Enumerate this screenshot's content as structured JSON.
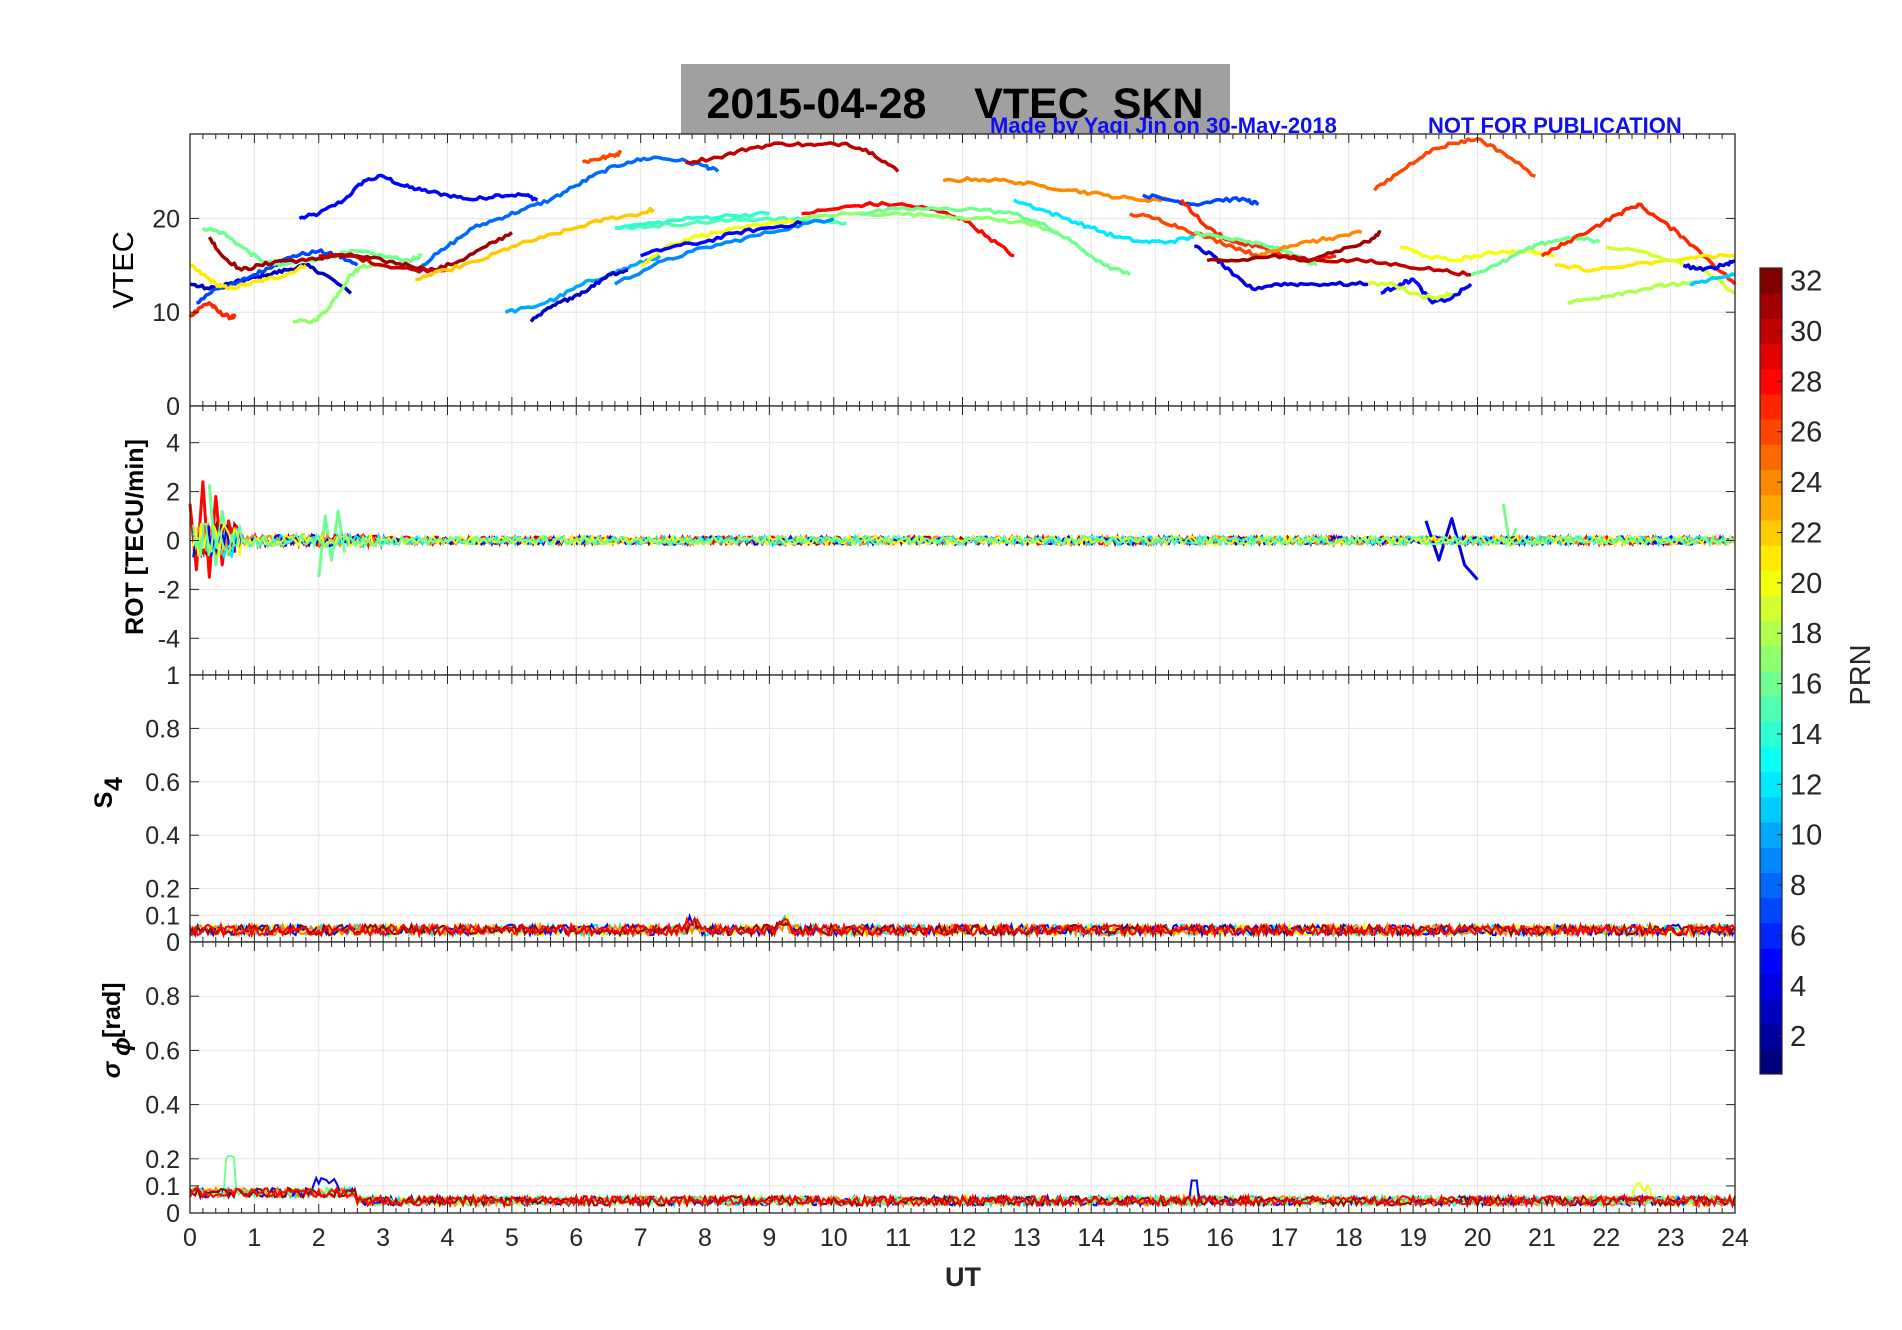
{
  "title": {
    "main": "2015-04-28    VTEC  SKN",
    "credit": "Made by Yaqi Jin on 30-May-2018",
    "notice": "NOT FOR PUBLICATION",
    "box_color": "#a0a0a0",
    "credit_color": "#1010ee"
  },
  "x_axis": {
    "label": "UT",
    "range": [
      0,
      24
    ],
    "ticks": [
      "0",
      "1",
      "2",
      "3",
      "4",
      "5",
      "6",
      "7",
      "8",
      "9",
      "10",
      "11",
      "12",
      "13",
      "14",
      "15",
      "16",
      "17",
      "18",
      "19",
      "20",
      "21",
      "22",
      "23",
      "24"
    ]
  },
  "colorbar": {
    "label": "PRN",
    "range": [
      1,
      32
    ],
    "ticks": [
      "2",
      "4",
      "6",
      "8",
      "10",
      "12",
      "14",
      "16",
      "18",
      "20",
      "22",
      "24",
      "26",
      "28",
      "30",
      "32"
    ],
    "colormap": "jet"
  },
  "chart_data": [
    {
      "type": "line",
      "panel": "vtec",
      "ylabel": "VTEC",
      "ylim": [
        0,
        29
      ],
      "yticks": [
        "0",
        "10",
        "20"
      ],
      "grid": true,
      "series": [
        {
          "prn": 5,
          "x": [
            1.7,
            2.0,
            2.4,
            2.7,
            3.0,
            3.3,
            3.6,
            4.0,
            4.4,
            4.8,
            5.2,
            5.4
          ],
          "y": [
            20,
            20.5,
            22,
            24,
            24.5,
            23.5,
            23,
            22.5,
            22,
            22.5,
            22.5,
            22
          ]
        },
        {
          "prn": 3,
          "x": [
            0,
            0.3,
            0.6,
            0.9,
            1.2,
            1.5,
            1.8,
            2.1,
            2.5
          ],
          "y": [
            13,
            12.5,
            13,
            13.5,
            14,
            14.5,
            15,
            14,
            12
          ]
        },
        {
          "prn": 7,
          "x": [
            0.1,
            0.4,
            0.7,
            1.0,
            1.3,
            1.6,
            2.0,
            2.3,
            2.6
          ],
          "y": [
            11,
            12.5,
            13,
            14,
            15,
            16,
            16.5,
            16,
            15
          ]
        },
        {
          "prn": 27,
          "x": [
            0,
            0.15,
            0.3,
            0.45,
            0.6,
            0.7
          ],
          "y": [
            9.5,
            10.5,
            11,
            10,
            9.5,
            9.5
          ]
        },
        {
          "prn": 21,
          "x": [
            0,
            0.2,
            0.4,
            0.6,
            0.9,
            1.2,
            1.5,
            1.8
          ],
          "y": [
            15,
            14,
            13,
            12.5,
            13,
            13.5,
            14,
            15
          ]
        },
        {
          "prn": 16,
          "x": [
            0.2,
            0.5,
            0.8,
            1.1,
            1.4,
            1.8,
            2.2,
            2.6,
            3.0,
            3.4,
            3.6
          ],
          "y": [
            19,
            18.5,
            17,
            15.5,
            15,
            15.5,
            16,
            16.5,
            16,
            15.5,
            16
          ]
        },
        {
          "prn": 17,
          "x": [
            1.6,
            1.9,
            2.1,
            2.3,
            2.5,
            2.7,
            3.0
          ],
          "y": [
            9,
            9,
            10,
            12,
            14,
            15,
            15
          ]
        },
        {
          "prn": 31,
          "x": [
            0.3,
            0.5,
            0.8,
            1.1,
            1.4,
            1.8,
            2.2,
            2.6,
            3.0,
            3.4,
            3.8,
            4.2,
            4.6,
            5.0
          ],
          "y": [
            18,
            16,
            14.5,
            15,
            15.5,
            15.5,
            16,
            16,
            15.5,
            15,
            14.5,
            15.5,
            17,
            18.5
          ]
        },
        {
          "prn": 30,
          "x": [
            2.0,
            2.5,
            3.0,
            3.5,
            4.0
          ],
          "y": [
            16,
            16,
            15,
            14.5,
            14.5
          ]
        },
        {
          "prn": 8,
          "x": [
            3.6,
            4.0,
            4.4,
            4.8,
            5.2,
            5.6,
            6.0,
            6.4,
            6.8,
            7.2,
            7.6,
            8.0,
            8.2
          ],
          "y": [
            15,
            17,
            19,
            20,
            21,
            22,
            23.5,
            25,
            26,
            26.5,
            26.2,
            25.6,
            25
          ]
        },
        {
          "prn": 22,
          "x": [
            3.5,
            4.0,
            4.5,
            5.0,
            5.5,
            6.0,
            6.5,
            7.0,
            7.2
          ],
          "y": [
            13.5,
            14.5,
            15.5,
            17,
            18,
            19,
            20,
            20.5,
            21
          ]
        },
        {
          "prn": 10,
          "x": [
            4.9,
            5.3,
            5.7,
            6.1,
            6.5,
            6.9,
            7.3
          ],
          "y": [
            10,
            10.5,
            11.5,
            13,
            14,
            15,
            16
          ]
        },
        {
          "prn": 3,
          "x": [
            5.3,
            5.6,
            5.9,
            6.2,
            6.5,
            6.8
          ],
          "y": [
            9,
            10.5,
            11.5,
            12.5,
            14,
            14.5
          ]
        },
        {
          "prn": 26,
          "x": [
            6.1,
            6.3,
            6.5,
            6.7
          ],
          "y": [
            26,
            26.3,
            26.6,
            27
          ]
        },
        {
          "prn": 30,
          "x": [
            7.7,
            8.2,
            8.7,
            9.2,
            9.7,
            10.2,
            10.6,
            11.0
          ],
          "y": [
            26,
            26.5,
            27.5,
            28,
            27.8,
            28,
            27,
            25
          ]
        },
        {
          "prn": 15,
          "x": [
            6.6,
            7.2,
            7.8,
            8.4,
            9.0,
            9.6,
            10.2
          ],
          "y": [
            19,
            19.2,
            19.5,
            19.8,
            20,
            19.8,
            19.5
          ]
        },
        {
          "prn": 9,
          "x": [
            6.6,
            7.2,
            7.8,
            8.4,
            9.0,
            9.6,
            10.0
          ],
          "y": [
            13,
            15,
            16.5,
            17.5,
            18.5,
            19.5,
            20
          ]
        },
        {
          "prn": 20,
          "x": [
            7.0,
            7.4,
            7.8,
            8.2,
            8.6,
            9.0,
            9.5
          ],
          "y": [
            15,
            17,
            18,
            18.5,
            19,
            19.5,
            19.7
          ]
        },
        {
          "prn": 5,
          "x": [
            7.0,
            7.5,
            8.0,
            8.5,
            9.0,
            9.5
          ],
          "y": [
            16,
            17,
            17.5,
            18.5,
            19,
            19.5
          ]
        },
        {
          "prn": 14,
          "x": [
            6.6,
            7.2,
            7.8,
            8.4,
            9.0
          ],
          "y": [
            19,
            19.5,
            20,
            20.3,
            20.5
          ]
        },
        {
          "prn": 28,
          "x": [
            9.5,
            10.0,
            10.5,
            11.0,
            11.5,
            12.0,
            12.4,
            12.8
          ],
          "y": [
            20.5,
            21,
            21.5,
            21.5,
            21,
            20,
            18,
            16
          ]
        },
        {
          "prn": 17,
          "x": [
            9.5,
            10.2,
            10.9,
            11.6,
            12.3,
            13.0,
            13.5
          ],
          "y": [
            20,
            20.5,
            20.5,
            20.3,
            20,
            19.5,
            18.5
          ]
        },
        {
          "prn": 16,
          "x": [
            10.4,
            11.0,
            11.6,
            12.2,
            12.8,
            13.2,
            13.7,
            14.2,
            14.6
          ],
          "y": [
            20.5,
            21,
            21,
            21,
            20.5,
            19.5,
            17.5,
            15,
            14
          ]
        },
        {
          "prn": 24,
          "x": [
            11.7,
            12.2,
            12.7,
            13.2,
            13.7,
            14.2,
            14.7,
            15.2
          ],
          "y": [
            24,
            24.2,
            24,
            23.5,
            23,
            22.5,
            22,
            22
          ]
        },
        {
          "prn": 12,
          "x": [
            12.8,
            13.2,
            13.6,
            14.0,
            14.4,
            14.8,
            15.2,
            15.6
          ],
          "y": [
            22,
            21,
            20,
            19,
            18,
            17.5,
            17.5,
            18
          ]
        },
        {
          "prn": 26,
          "x": [
            14.6,
            15.0,
            15.4,
            15.8,
            16.2,
            16.6
          ],
          "y": [
            20.5,
            20,
            19,
            18,
            17,
            16
          ]
        },
        {
          "prn": 7,
          "x": [
            14.8,
            15.2,
            15.6,
            16.0,
            16.4,
            16.6
          ],
          "y": [
            22.5,
            22,
            21.5,
            22,
            22,
            21.5
          ]
        },
        {
          "prn": 4,
          "x": [
            15.6,
            15.9,
            16.2,
            16.5,
            16.9,
            17.3,
            17.8,
            18.3
          ],
          "y": [
            17,
            16,
            14,
            12.5,
            13,
            13,
            13,
            13
          ]
        },
        {
          "prn": 27,
          "x": [
            15.4,
            15.8,
            16.2,
            16.6,
            17.0,
            17.4,
            17.8
          ],
          "y": [
            22,
            19,
            17.5,
            17,
            16,
            15.5,
            16
          ]
        },
        {
          "prn": 16,
          "x": [
            15.6,
            16.0,
            16.4,
            16.8,
            17.2,
            17.5
          ],
          "y": [
            18.5,
            18,
            17.5,
            17,
            16,
            15
          ]
        },
        {
          "prn": 24,
          "x": [
            16.6,
            17.0,
            17.4,
            17.8,
            18.2
          ],
          "y": [
            16,
            17,
            17.5,
            18,
            18.5
          ]
        },
        {
          "prn": 31,
          "x": [
            15.8,
            16.3,
            16.8,
            17.3,
            17.8,
            18.3,
            18.5
          ],
          "y": [
            15.5,
            15.5,
            16,
            15.5,
            16.5,
            17.5,
            18.5
          ]
        },
        {
          "prn": 30,
          "x": [
            17.0,
            17.6,
            18.2,
            18.8,
            19.4,
            19.9
          ],
          "y": [
            16,
            15.5,
            15.5,
            15,
            14.5,
            14
          ]
        },
        {
          "prn": 26,
          "x": [
            18.4,
            18.8,
            19.2,
            19.6,
            20.0,
            20.4,
            20.9
          ],
          "y": [
            23,
            25,
            27,
            28,
            28.5,
            27,
            24.5
          ]
        },
        {
          "prn": 5,
          "x": [
            18.5,
            18.8,
            19.0,
            19.3,
            19.6,
            19.9
          ],
          "y": [
            12,
            13,
            13.5,
            11,
            11.5,
            13
          ]
        },
        {
          "prn": 20,
          "x": [
            18.8,
            19.2,
            19.6,
            20.0,
            20.4,
            20.8,
            21.2
          ],
          "y": [
            17,
            16,
            15.5,
            16,
            16.5,
            16.5,
            16
          ]
        },
        {
          "prn": 19,
          "x": [
            18.3,
            18.7,
            19.0,
            19.3,
            19.6
          ],
          "y": [
            13,
            13,
            12,
            11.5,
            12
          ]
        },
        {
          "prn": 16,
          "x": [
            19.9,
            20.3,
            20.7,
            21.1,
            21.5,
            21.9
          ],
          "y": [
            14,
            15,
            16.5,
            17.5,
            18,
            17.5
          ]
        },
        {
          "prn": 27,
          "x": [
            21.0,
            21.4,
            21.8,
            22.2,
            22.5,
            22.8,
            23.2,
            23.6,
            24.0
          ],
          "y": [
            16,
            17.5,
            19,
            20.5,
            21.5,
            20,
            18,
            15.5,
            13
          ]
        },
        {
          "prn": 18,
          "x": [
            21.4,
            21.8,
            22.2,
            22.6,
            23.0,
            23.4
          ],
          "y": [
            11,
            11.5,
            12,
            12.5,
            13,
            13
          ]
        },
        {
          "prn": 21,
          "x": [
            21.2,
            21.8,
            22.4,
            23.0,
            23.6,
            24.0
          ],
          "y": [
            15,
            14.5,
            15,
            15.5,
            16,
            16
          ]
        },
        {
          "prn": 19,
          "x": [
            22.0,
            22.5,
            23.0,
            23.5,
            24.0
          ],
          "y": [
            17,
            16.5,
            15.5,
            14.5,
            12
          ]
        },
        {
          "prn": 4,
          "x": [
            23.2,
            23.5,
            23.8,
            24.0
          ],
          "y": [
            15,
            14.5,
            15,
            15.5
          ]
        },
        {
          "prn": 11,
          "x": [
            23.3,
            23.6,
            24.0
          ],
          "y": [
            13,
            13.5,
            14
          ]
        }
      ]
    },
    {
      "type": "line",
      "panel": "rot",
      "ylabel": "ROT [TECU/min]",
      "ylim": [
        -5.5,
        5.5
      ],
      "yticks": [
        "-4",
        "-2",
        "0",
        "2",
        "4"
      ],
      "grid": true,
      "description_of_data": "ROT values of all PRNs hover around 0, with spikes up to about +/-2.4 near 0-0.7 UT and small bursts near 2 UT and 19-20 UT.",
      "series": [
        {
          "prn": 28,
          "x": [
            0.0,
            0.1,
            0.2,
            0.3,
            0.4,
            0.5,
            0.6,
            0.7
          ],
          "y": [
            1.5,
            -1.2,
            2.4,
            -1.5,
            1.8,
            -1.0,
            0.8,
            -0.5
          ]
        },
        {
          "prn": 16,
          "x": [
            0.3,
            0.4,
            0.5,
            0.6,
            0.7
          ],
          "y": [
            2.3,
            -1.0,
            1.2,
            -0.6,
            0.5
          ]
        },
        {
          "prn": 16,
          "x": [
            2.0,
            2.1,
            2.2,
            2.3,
            2.4
          ],
          "y": [
            -1.5,
            1.0,
            -0.8,
            1.2,
            -0.5
          ]
        },
        {
          "prn": 4,
          "x": [
            19.2,
            19.4,
            19.6,
            19.8,
            20.0
          ],
          "y": [
            0.8,
            -0.8,
            0.9,
            -1.0,
            -1.6
          ]
        },
        {
          "prn": 16,
          "x": [
            20.4,
            20.5,
            20.6
          ],
          "y": [
            1.5,
            -0.2,
            0.5
          ]
        }
      ]
    },
    {
      "type": "line",
      "panel": "s4",
      "ylabel": "S4",
      "ylim": [
        0,
        1
      ],
      "yticks": [
        "0",
        "0.1",
        "0.2",
        "0.4",
        "0.6",
        "0.8",
        "1"
      ],
      "grid": true,
      "description_of_data": "S4 values for all PRNs lie between about 0.02 and 0.12 throughout the day."
    },
    {
      "type": "line",
      "panel": "sigma_phi",
      "ylabel": "σ_ϕ [rad]",
      "ylim": [
        0,
        1
      ],
      "yticks": [
        "0",
        "0.1",
        "0.2",
        "0.4",
        "0.6",
        "0.8"
      ],
      "grid": true,
      "description_of_data": "Phase scintillation values mostly between 0.03 and 0.1, peaking near 0.25 around 0.6 UT and about 0.13 near 22.5 UT."
    }
  ]
}
